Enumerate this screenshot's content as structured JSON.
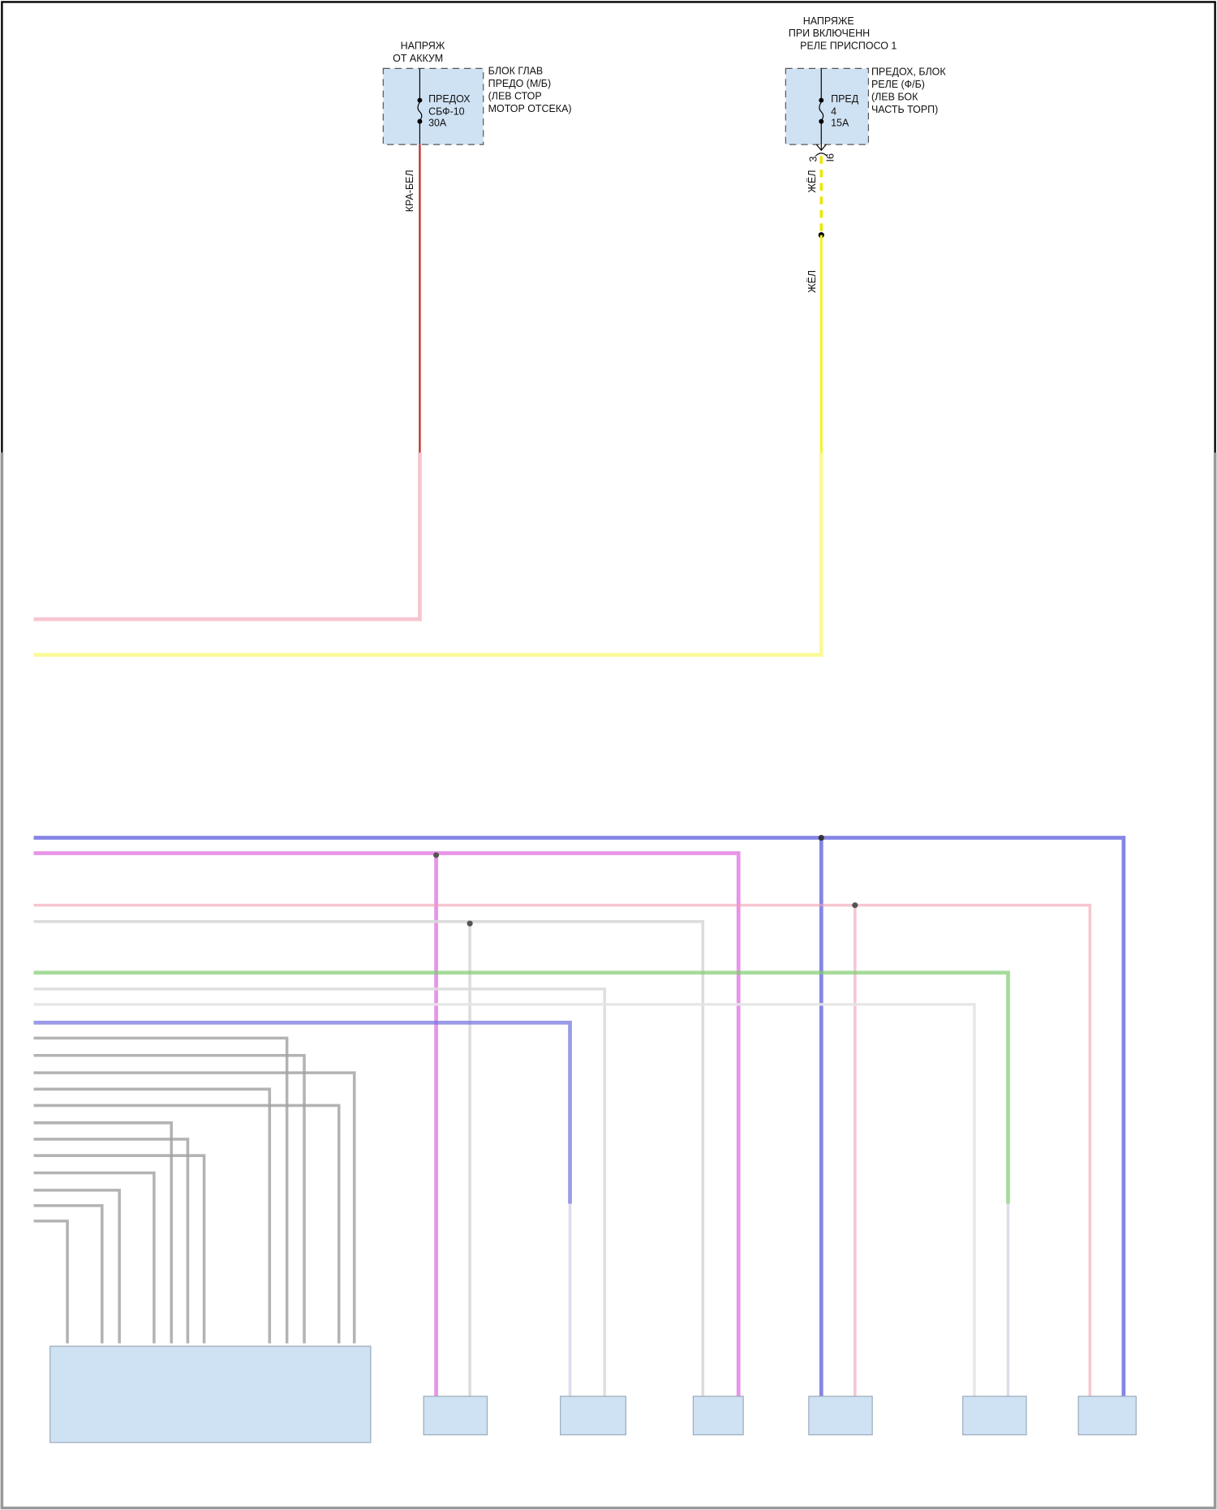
{
  "fuse_left": {
    "source_line1": "НАПРЯЖ",
    "source_line2": "ОТ АККУМ",
    "fuse_line1": "ПРЕДОХ",
    "fuse_line2": "СБФ-10",
    "fuse_line3": "30A",
    "block_line1": "БЛОК ГЛАВ",
    "block_line2": "ПРЕДО (М/Б)",
    "block_line3": "(ЛЕВ СТОР",
    "block_line4": "МОТОР ОТСЕКА)",
    "wire_color": "КРА-БЕЛ"
  },
  "fuse_right": {
    "source_line1": "НАПРЯЖЕ",
    "source_line2": "ПРИ ВКЛЮЧЕНН",
    "source_line3": "РЕЛЕ ПРИСПОСО 1",
    "fuse_line1": "ПРЕД",
    "fuse_line2": "4",
    "fuse_line3": "15A",
    "block_line1": "ПРЕДОХ, БЛОК",
    "block_line2": "РЕЛЕ (Ф/Б)",
    "block_line3": "(ЛЕВ БОК",
    "block_line4": "ЧАСТЬ ТОРП)",
    "pin_a": "3",
    "pin_b": "I6",
    "wire_color_1": "ЖЁЛ",
    "wire_color_2": "ЖЁЛ"
  },
  "colors": {
    "wire_red": "#c0302c",
    "wire_yellow": "#f2f21a",
    "wire_blue": "#7070e0",
    "wire_magenta": "#e070e0",
    "wire_pink": "#f0a0b0",
    "wire_green": "#80cc70",
    "wire_gray": "#a0a0a0",
    "component_fill": "#cfe2f3"
  }
}
